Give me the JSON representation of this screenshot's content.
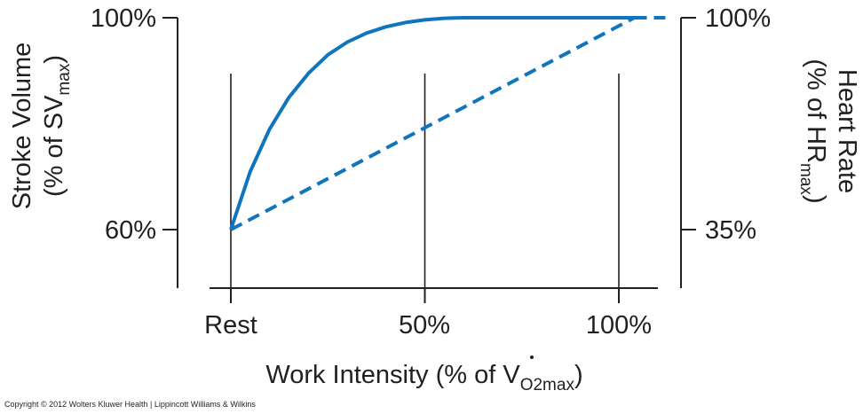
{
  "chart_data": {
    "type": "line",
    "x_axis": {
      "label_main": "Work Intensity (% of ",
      "label_symbol": "V",
      "label_sub": "O2max",
      "label_close": ")",
      "tick_labels": [
        "Rest",
        "50%",
        "100%"
      ],
      "tick_values": [
        0,
        50,
        100
      ]
    },
    "y_left": {
      "label_line1": "Stroke Volume",
      "label_line2_main": "(% of SV",
      "label_line2_sub": "max",
      "label_line2_close": ")",
      "tick_labels": [
        "100%",
        "60%"
      ],
      "tick_values": [
        100,
        60
      ]
    },
    "y_right": {
      "label_line1": "Heart Rate",
      "label_line2_main": "(% of HR",
      "label_line2_sub": "max",
      "label_line2_close": ")",
      "tick_labels": [
        "100%",
        "35%"
      ],
      "tick_values": [
        100,
        35
      ]
    },
    "series": [
      {
        "key": "stroke_volume",
        "axis": "left",
        "style": "solid",
        "x": [
          0,
          5,
          10,
          15,
          20,
          25,
          30,
          35,
          40,
          45,
          50,
          55,
          60,
          65,
          70,
          80,
          90,
          100,
          105
        ],
        "values": [
          60,
          71,
          79,
          85,
          89.5,
          93,
          95.4,
          97.1,
          98.3,
          99.1,
          99.6,
          99.9,
          100,
          100,
          100,
          100,
          100,
          100,
          100
        ]
      },
      {
        "key": "heart_rate",
        "axis": "right",
        "style": "dashed",
        "x": [
          0,
          104
        ],
        "values": [
          35,
          100
        ]
      },
      {
        "key": "max_plateau",
        "axis": "left",
        "style": "dashed",
        "x": [
          104,
          112
        ],
        "values": [
          100,
          100
        ]
      }
    ],
    "grid_lines_x": [
      0,
      50,
      100
    ],
    "colors": {
      "line": "#0f75bc",
      "axis": "#231f20"
    }
  },
  "copyright": "Copyright © 2012 Wolters Kluwer Health | Lippincott Williams & Wilkins"
}
